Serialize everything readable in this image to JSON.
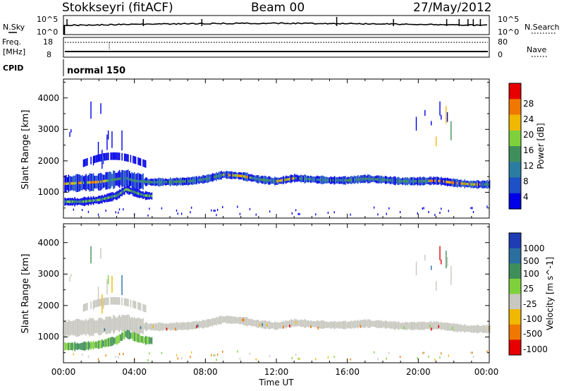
{
  "header": {
    "station": "Stokkseyri (fitACF)",
    "beam": "Beam 00",
    "date": "27/May/2012"
  },
  "top_panels": {
    "nsky_label": "N.Sky",
    "nsky_ticks": [
      "10^5",
      "10^0"
    ],
    "nsearch_label": "N.Search",
    "nsearch_ticks": [
      "10^5",
      "10^0"
    ],
    "freq_label_1": "Freq.",
    "freq_label_2": "[MHz]",
    "freq_ticks": [
      "18",
      "8"
    ],
    "nave_label": "Nave",
    "nave_ticks": [
      "80",
      "0"
    ],
    "cpid_label": "CPID",
    "cpid_value": "normal 150"
  },
  "chart_data": [
    {
      "type": "heatmap",
      "panel": "power",
      "xlabel": "",
      "ylabel": "Slant Range [km]",
      "xlim": [
        0,
        24
      ],
      "ylim": [
        180,
        4600
      ],
      "yticks": [
        "1000",
        "2000",
        "3000",
        "4000"
      ],
      "colorbar": {
        "label": "Power [dB]",
        "range": [
          0,
          32
        ],
        "tick_labels": [
          "4",
          "8",
          "12",
          "16",
          "20",
          "24",
          "28"
        ],
        "colors": [
          "#0000e6",
          "#1e50c8",
          "#2b7da0",
          "#3f8f5a",
          "#7fd13b",
          "#f0b800",
          "#f07800",
          "#e60000"
        ]
      },
      "bands": [
        {
          "name": "main",
          "points": [
            [
              0.0,
              1270
            ],
            [
              1.0,
              1300
            ],
            [
              2.0,
              1330
            ],
            [
              3.0,
              1420
            ],
            [
              3.5,
              1450
            ],
            [
              4.0,
              1360
            ],
            [
              5.0,
              1320
            ],
            [
              6.0,
              1330
            ],
            [
              7.0,
              1350
            ],
            [
              8.0,
              1420
            ],
            [
              9.0,
              1560
            ],
            [
              10.0,
              1520
            ],
            [
              11.0,
              1410
            ],
            [
              12.0,
              1350
            ],
            [
              13.0,
              1450
            ],
            [
              14.0,
              1410
            ],
            [
              15.0,
              1380
            ],
            [
              16.0,
              1380
            ],
            [
              17.0,
              1430
            ],
            [
              18.0,
              1400
            ],
            [
              19.0,
              1350
            ],
            [
              20.0,
              1350
            ],
            [
              21.0,
              1370
            ],
            [
              22.0,
              1300
            ],
            [
              23.0,
              1250
            ],
            [
              24.0,
              1250
            ]
          ]
        },
        {
          "name": "lower",
          "points": [
            [
              0.0,
              700
            ],
            [
              1.0,
              700
            ],
            [
              2.0,
              760
            ],
            [
              3.0,
              900
            ],
            [
              3.5,
              1100
            ],
            [
              4.0,
              1000
            ],
            [
              4.5,
              900
            ],
            [
              5.0,
              880
            ]
          ]
        }
      ]
    },
    {
      "type": "heatmap",
      "panel": "velocity",
      "xlabel": "Time UT",
      "ylabel": "Slant Range [km]",
      "xlim": [
        0,
        24
      ],
      "ylim": [
        180,
        4600
      ],
      "xticks": [
        "00:00",
        "04:00",
        "08:00",
        "12:00",
        "16:00",
        "20:00",
        "00:00"
      ],
      "yticks": [
        "1000",
        "2000",
        "3000",
        "4000"
      ],
      "colorbar": {
        "label": "Velocity [m s^-1]",
        "range": [
          -1000,
          1000
        ],
        "tick_labels": [
          "1000",
          "500",
          "100",
          "25",
          "-25",
          "-100",
          "-500",
          "-1000"
        ],
        "colors": [
          "#1e3cb4",
          "#2b6ea0",
          "#3f8f5a",
          "#7fd13b",
          "#c8c8c0",
          "#f0b800",
          "#f07800",
          "#e60000"
        ]
      }
    }
  ]
}
